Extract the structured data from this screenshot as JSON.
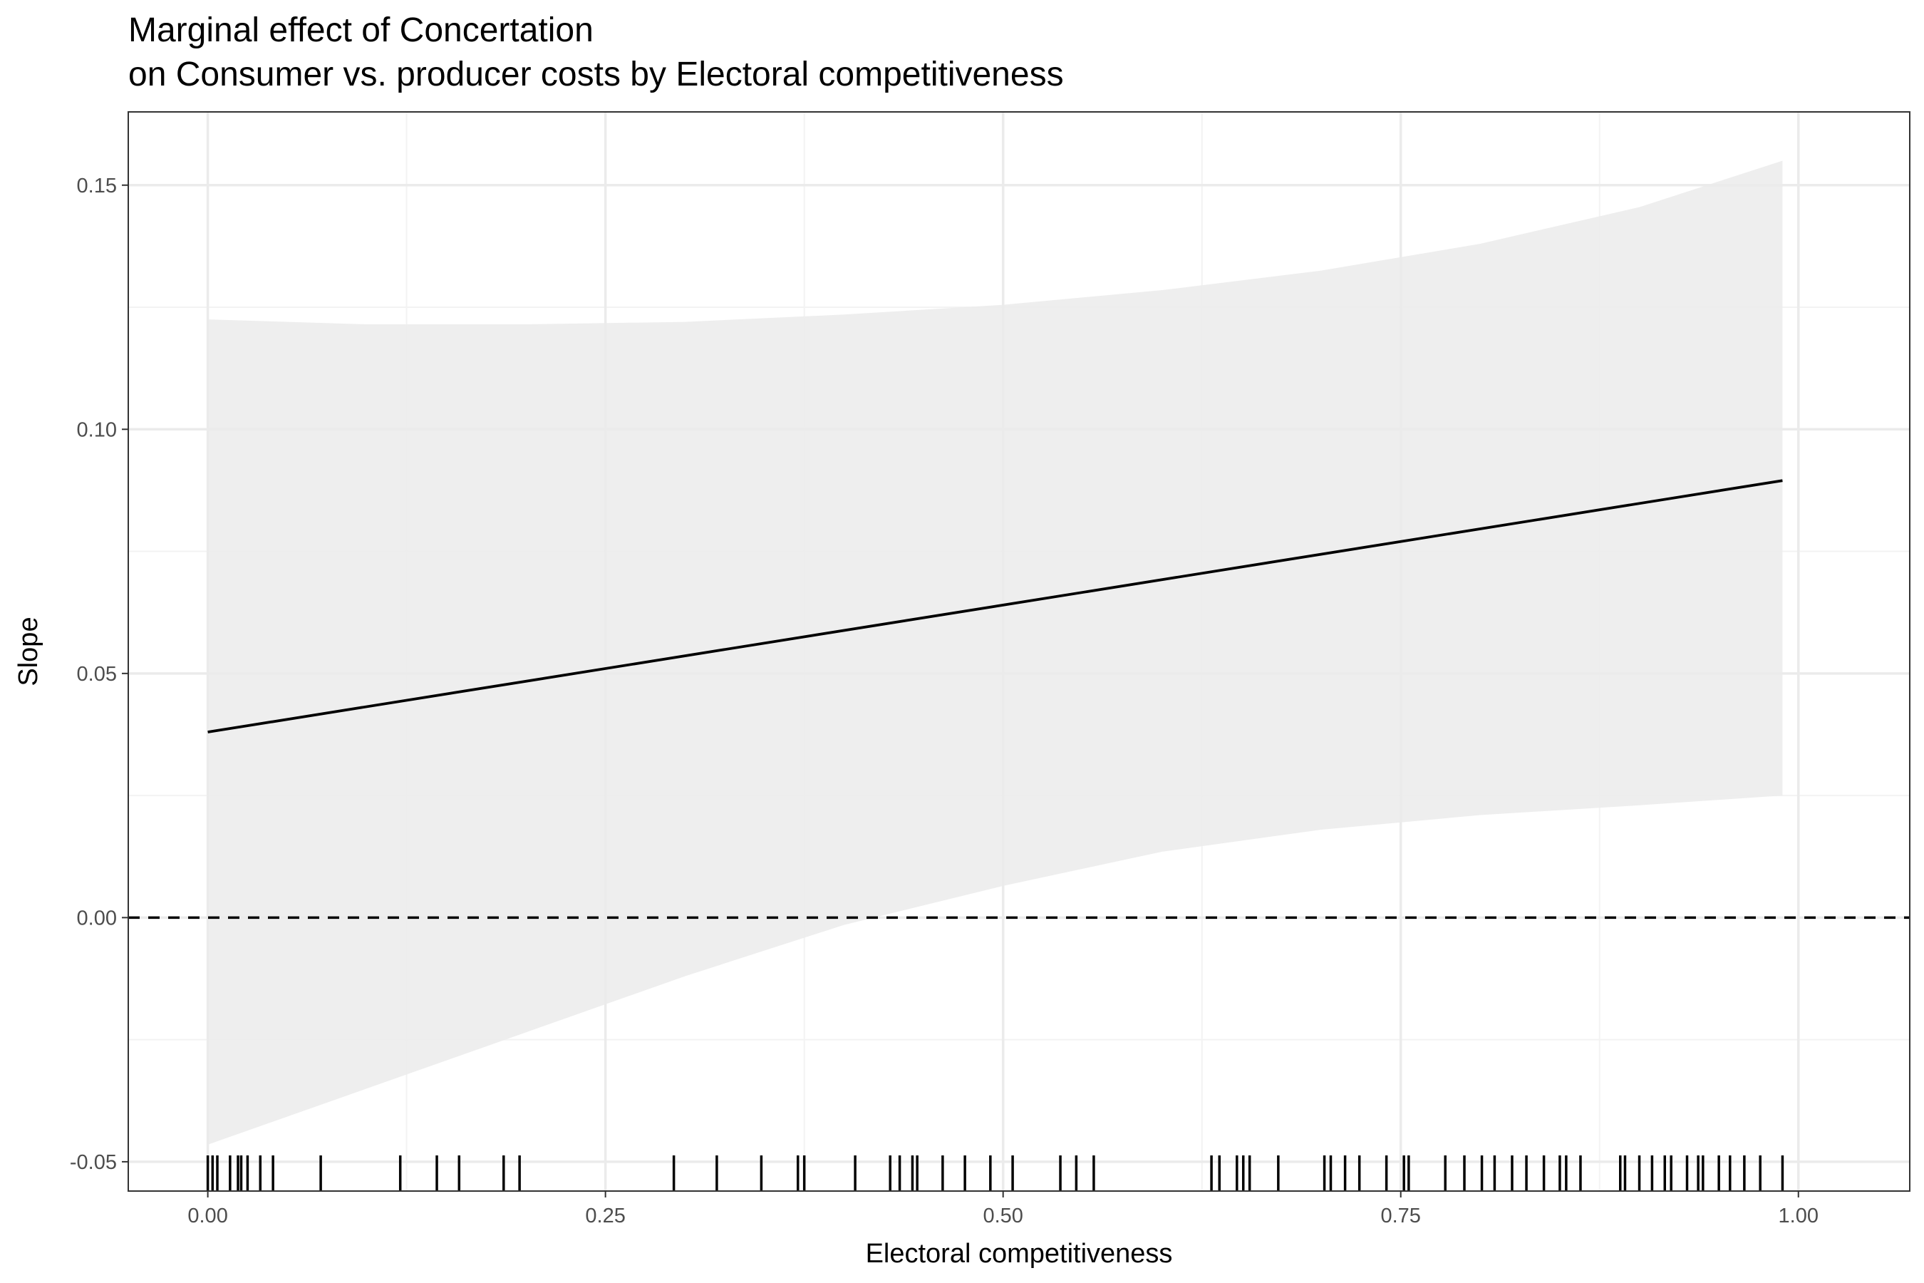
{
  "chart_data": {
    "type": "line",
    "title": "Marginal effect of Concertation",
    "subtitle": "on Consumer vs. producer costs by Electoral competitiveness",
    "xlabel": "Electoral competitiveness",
    "ylabel": "Slope",
    "xlim": [
      -0.05,
      1.07
    ],
    "ylim": [
      -0.056,
      0.165
    ],
    "x_ticks": [
      0.0,
      0.25,
      0.5,
      0.75,
      1.0
    ],
    "x_tick_labels": [
      "0.00",
      "0.25",
      "0.50",
      "0.75",
      "1.00"
    ],
    "y_ticks": [
      -0.05,
      0.0,
      0.05,
      0.1,
      0.15
    ],
    "y_tick_labels": [
      "-0.05",
      "0.00",
      "0.05",
      "0.10",
      "0.15"
    ],
    "grid": true,
    "legend": "none",
    "series": [
      {
        "kind": "line",
        "x": [
          0.0,
          0.99
        ],
        "y": [
          0.038,
          0.0895
        ]
      }
    ],
    "ribbon": {
      "x": [
        0.0,
        0.1,
        0.2,
        0.3,
        0.4,
        0.5,
        0.6,
        0.7,
        0.8,
        0.9,
        0.99
      ],
      "upper": [
        0.1225,
        0.1215,
        0.1215,
        0.122,
        0.1235,
        0.1255,
        0.1285,
        0.1325,
        0.138,
        0.1455,
        0.155
      ],
      "lower": [
        -0.0465,
        -0.035,
        -0.0235,
        -0.012,
        -0.0015,
        0.0065,
        0.0135,
        0.018,
        0.021,
        0.023,
        0.025
      ]
    },
    "reference_line": {
      "y": 0.0,
      "style": "dashed"
    },
    "rug_x": [
      0.0,
      0.003,
      0.006,
      0.014,
      0.019,
      0.021,
      0.025,
      0.033,
      0.041,
      0.071,
      0.121,
      0.144,
      0.158,
      0.186,
      0.196,
      0.293,
      0.32,
      0.348,
      0.371,
      0.375,
      0.407,
      0.429,
      0.435,
      0.443,
      0.446,
      0.462,
      0.476,
      0.492,
      0.506,
      0.536,
      0.546,
      0.557,
      0.631,
      0.636,
      0.647,
      0.651,
      0.655,
      0.673,
      0.702,
      0.706,
      0.715,
      0.724,
      0.741,
      0.752,
      0.755,
      0.778,
      0.79,
      0.801,
      0.809,
      0.82,
      0.829,
      0.84,
      0.85,
      0.854,
      0.863,
      0.888,
      0.891,
      0.9,
      0.908,
      0.916,
      0.92,
      0.93,
      0.937,
      0.94,
      0.95,
      0.957,
      0.966,
      0.976,
      0.99
    ],
    "colors": {
      "line": "#000000",
      "ribbon": "#ebebeb",
      "grid_major": "#ebebeb",
      "grid_minor": "#f3f3f3",
      "panel_border": "#333333",
      "tick_label": "#4d4d4d"
    }
  }
}
